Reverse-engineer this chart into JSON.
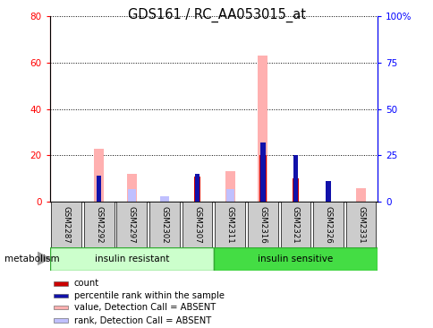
{
  "title": "GDS161 / RC_AA053015_at",
  "samples": [
    "GSM2287",
    "GSM2292",
    "GSM2297",
    "GSM2302",
    "GSM2307",
    "GSM2311",
    "GSM2316",
    "GSM2321",
    "GSM2326",
    "GSM2331"
  ],
  "count": [
    0,
    0,
    0,
    0,
    11,
    0,
    20,
    10,
    0,
    0
  ],
  "percentile_rank": [
    0,
    14,
    0,
    0,
    15,
    0,
    32,
    25,
    11,
    0
  ],
  "value_absent": [
    0,
    23,
    12,
    0,
    0,
    13,
    63,
    0,
    0,
    6
  ],
  "rank_absent": [
    0,
    0,
    7,
    3,
    0,
    7,
    0,
    0,
    0,
    0
  ],
  "group1_label": "insulin resistant",
  "group2_label": "insulin sensitive",
  "ylim_left": [
    0,
    80
  ],
  "ylim_right": [
    0,
    100
  ],
  "yticks_left": [
    0,
    20,
    40,
    60,
    80
  ],
  "yticks_right": [
    0,
    25,
    50,
    75,
    100
  ],
  "yticklabels_left": [
    "0",
    "20",
    "40",
    "60",
    "80"
  ],
  "yticklabels_right": [
    "0",
    "25",
    "50",
    "75",
    "100%"
  ],
  "color_count": "#cc0000",
  "color_rank": "#1111aa",
  "color_value_absent": "#ffb0b0",
  "color_rank_absent": "#c0c0ff",
  "group1_color": "#ccffcc",
  "group2_color": "#44dd44",
  "tick_label_bg": "#cccccc",
  "legend_items": [
    "count",
    "percentile rank within the sample",
    "value, Detection Call = ABSENT",
    "rank, Detection Call = ABSENT"
  ],
  "bar_width": 0.25,
  "metabolism_label": "metabolism"
}
